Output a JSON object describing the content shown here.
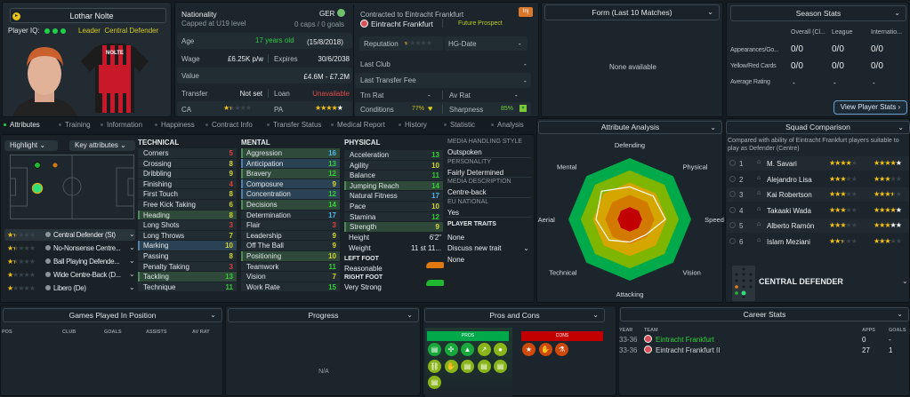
{
  "player": {
    "name": "Lothar Nolte",
    "iq_label": "Player IQ:",
    "iq_dots": 3,
    "role_tags": "Leader  Central Defender",
    "shirt_name": "NOLTE"
  },
  "info": {
    "nationality_label": "Nationality",
    "capped": "Capped at U19 level",
    "nation": "GER",
    "caps": "0 caps / 0 goals",
    "age_label": "Age",
    "age": "17 years old",
    "dob": "(15/8/2018)",
    "wage_label": "Wage",
    "wage": "£6.25K p/w",
    "expires_label": "Expires",
    "expires": "30/6/2038",
    "value_label": "Value",
    "value": "£4.6M - £7.2M",
    "transfer_label": "Transfer",
    "transfer": "Not set",
    "loan_label": "Loan",
    "loan": "Unavailable",
    "ca_label": "CA",
    "ca_stars": 1.5,
    "pa_label": "PA",
    "pa_stars": 4,
    "pa_stars_max": 5,
    "contracted": "Contracted to Eintracht Frankfurt",
    "club": "Eintracht Frankfurt",
    "status": "Future Prospect",
    "inj_badge": "Inj",
    "reputation_label": "Reputation",
    "reputation_stars": 0.5,
    "hg_label": "HG-Date",
    "hg": "-",
    "last_club_label": "Last Club",
    "last_club": "-",
    "last_fee_label": "Last Transfer Fee",
    "last_fee": "-",
    "trn_label": "Trn Rat",
    "trn": "-",
    "av_label": "Av Rat",
    "av": "-",
    "conditions_label": "Conditions",
    "conditions": "77%",
    "sharpness_label": "Sharpness",
    "sharpness": "85%"
  },
  "form": {
    "title": "Form (Last 10 Matches)",
    "empty": "None available"
  },
  "season": {
    "title": "Season Stats",
    "cols": [
      "Overall (Cl...",
      "League",
      "Internatio..."
    ],
    "rows": [
      {
        "label": "Appearances/Go...",
        "vals": [
          "0/0",
          "0/0",
          "0/0"
        ]
      },
      {
        "label": "Yellow/Red Cards",
        "vals": [
          "0/0",
          "0/0",
          "0/0"
        ]
      },
      {
        "label": "Average Rating",
        "vals": [
          "-",
          "-",
          "-"
        ]
      }
    ],
    "button": "View Player Stats ›"
  },
  "tabs": [
    "Attributes",
    "Training",
    "Information",
    "Happiness",
    "Contract Info",
    "Transfer Status",
    "Medical Report",
    "History",
    "Statistic",
    "Analysis"
  ],
  "active_tab": 0,
  "controls": {
    "highlight": "Highlight",
    "key_attributes": "Key attributes"
  },
  "roles": [
    {
      "name": "Central Defender (St)",
      "stars": 1.5
    },
    {
      "name": "No-Nonsense Centre...",
      "stars": 1.5
    },
    {
      "name": "Ball Playing Defende...",
      "stars": 1.5
    },
    {
      "name": "Wide Centre-Back (D...",
      "stars": 1
    },
    {
      "name": "Libero (De)",
      "stars": 1
    }
  ],
  "technical": {
    "title": "TECHNICAL",
    "items": [
      {
        "name": "Corners",
        "v": 5
      },
      {
        "name": "Crossing",
        "v": 8
      },
      {
        "name": "Dribbling",
        "v": 9
      },
      {
        "name": "Finishing",
        "v": 4
      },
      {
        "name": "First Touch",
        "v": 8
      },
      {
        "name": "Free Kick Taking",
        "v": 6
      },
      {
        "name": "Heading",
        "v": 8,
        "hl": "green"
      },
      {
        "name": "Long Shots",
        "v": 3
      },
      {
        "name": "Long Throws",
        "v": 7
      },
      {
        "name": "Marking",
        "v": 10,
        "hl": "blue"
      },
      {
        "name": "Passing",
        "v": 8
      },
      {
        "name": "Penalty Taking",
        "v": 3
      },
      {
        "name": "Tackling",
        "v": 13,
        "hl": "green"
      },
      {
        "name": "Technique",
        "v": 11
      }
    ]
  },
  "mental": {
    "title": "MENTAL",
    "items": [
      {
        "name": "Aggression",
        "v": 16,
        "hl": "green"
      },
      {
        "name": "Anticipation",
        "v": 13,
        "hl": "blue"
      },
      {
        "name": "Bravery",
        "v": 12,
        "hl": "green"
      },
      {
        "name": "Composure",
        "v": 9,
        "hl": "blue"
      },
      {
        "name": "Concentration",
        "v": 12,
        "hl": "blue"
      },
      {
        "name": "Decisions",
        "v": 14,
        "hl": "green"
      },
      {
        "name": "Determination",
        "v": 17
      },
      {
        "name": "Flair",
        "v": 3
      },
      {
        "name": "Leadership",
        "v": 9
      },
      {
        "name": "Off The Ball",
        "v": 9
      },
      {
        "name": "Positioning",
        "v": 10,
        "hl": "green"
      },
      {
        "name": "Teamwork",
        "v": 11
      },
      {
        "name": "Vision",
        "v": 7
      },
      {
        "name": "Work Rate",
        "v": 15
      }
    ]
  },
  "physical": {
    "title": "PHYSICAL",
    "items": [
      {
        "name": "Acceleration",
        "v": 13
      },
      {
        "name": "Agility",
        "v": 10
      },
      {
        "name": "Balance",
        "v": 11
      },
      {
        "name": "Jumping Reach",
        "v": 14,
        "hl": "green"
      },
      {
        "name": "Natural Fitness",
        "v": 17
      },
      {
        "name": "Pace",
        "v": 10
      },
      {
        "name": "Stamina",
        "v": 12
      },
      {
        "name": "Strength",
        "v": 9,
        "hl": "green"
      }
    ]
  },
  "body": {
    "height_label": "Height",
    "height": "6'2\"",
    "weight_label": "Weight",
    "weight": "11 st 11...",
    "left_foot_label": "LEFT FOOT",
    "left_foot": "Reasonable",
    "right_foot_label": "RIGHT FOOT",
    "right_foot": "Very Strong"
  },
  "personal": [
    {
      "label": "MEDIA HANDLING STYLE",
      "value": "Outspoken"
    },
    {
      "label": "PERSONALITY",
      "value": "Fairly Determined"
    },
    {
      "label": "MEDIA DESCRIPTION",
      "value": "Centre-back"
    },
    {
      "label": "EU NATIONAL",
      "value": "Yes"
    }
  ],
  "traits": {
    "title": "PLAYER TRAITS",
    "value": "None",
    "discuss": "Discuss new trait",
    "discuss_value": "None"
  },
  "analysis": {
    "title": "Attribute Analysis",
    "axes": [
      "Defending",
      "Physical",
      "Speed",
      "Vision",
      "Attacking",
      "Technical",
      "Aerial",
      "Mental"
    ],
    "values": [
      53,
      54,
      58,
      36,
      37,
      48,
      55,
      65
    ],
    "max": 100,
    "band_colors": [
      "#00a94a",
      "#7db500",
      "#d6a600",
      "#d27a00",
      "#c20000"
    ]
  },
  "squad": {
    "title": "Squad Comparison",
    "desc": "Compared with ability of Eintracht Frankfurt players suitable to play as Defender (Centre)",
    "rows": [
      {
        "rank": "1",
        "name": "M. Savari",
        "ca": 4,
        "pa": 4,
        "pa_max": 5
      },
      {
        "rank": "2",
        "name": "Alejandro Lisa",
        "ca": 3,
        "pa": 3,
        "pa_max": 3
      },
      {
        "rank": "3",
        "name": "Kai Robertson",
        "ca": 3,
        "pa": 3.5,
        "pa_max": 3.5
      },
      {
        "rank": "4",
        "name": "Takaaki Wada",
        "ca": 3,
        "pa": 4,
        "pa_max": 5
      },
      {
        "rank": "5",
        "name": "Alberto Ramón",
        "ca": 3,
        "pa": 3,
        "pa_max": 4.5
      },
      {
        "rank": "6",
        "name": "Islam Meziani",
        "ca": 2.5,
        "pa": 3,
        "pa_max": 3
      }
    ],
    "position": "CENTRAL DEFENDER"
  },
  "games": {
    "title": "Games Played In Position",
    "cols": [
      "POS",
      "CLUB",
      "GOALS",
      "ASSISTS",
      "AV RAT"
    ]
  },
  "progress": {
    "title": "Progress",
    "empty": "N/A"
  },
  "pros_cons": {
    "title": "Pros and Cons",
    "pros_label": "PROS",
    "cons_label": "CONS",
    "pros": [
      "report-icon",
      "dna-icon",
      "jump-icon",
      "trend-up-icon",
      "brain-icon",
      "chain-icon",
      "handshake-icon",
      "report-icon",
      "report-icon",
      "report-icon",
      "report-icon"
    ],
    "cons": [
      "star-icon",
      "gloves-icon",
      "flask-icon"
    ]
  },
  "career": {
    "title": "Career Stats",
    "cols": [
      "YEAR",
      "TEAM",
      "APPS",
      "GOALS"
    ],
    "rows": [
      {
        "year": "33-36",
        "team": "Eintracht Frankfurt",
        "apps": "0",
        "goals": "-"
      },
      {
        "year": "33-36",
        "team": "Eintracht Frankfurt II",
        "apps": "27",
        "goals": "1"
      }
    ]
  },
  "colors": {
    "accent_green": "#1fd14a",
    "bg": "#151c21",
    "panel": "#1c252c",
    "pros": "#00a94a",
    "cons": "#c20000"
  }
}
